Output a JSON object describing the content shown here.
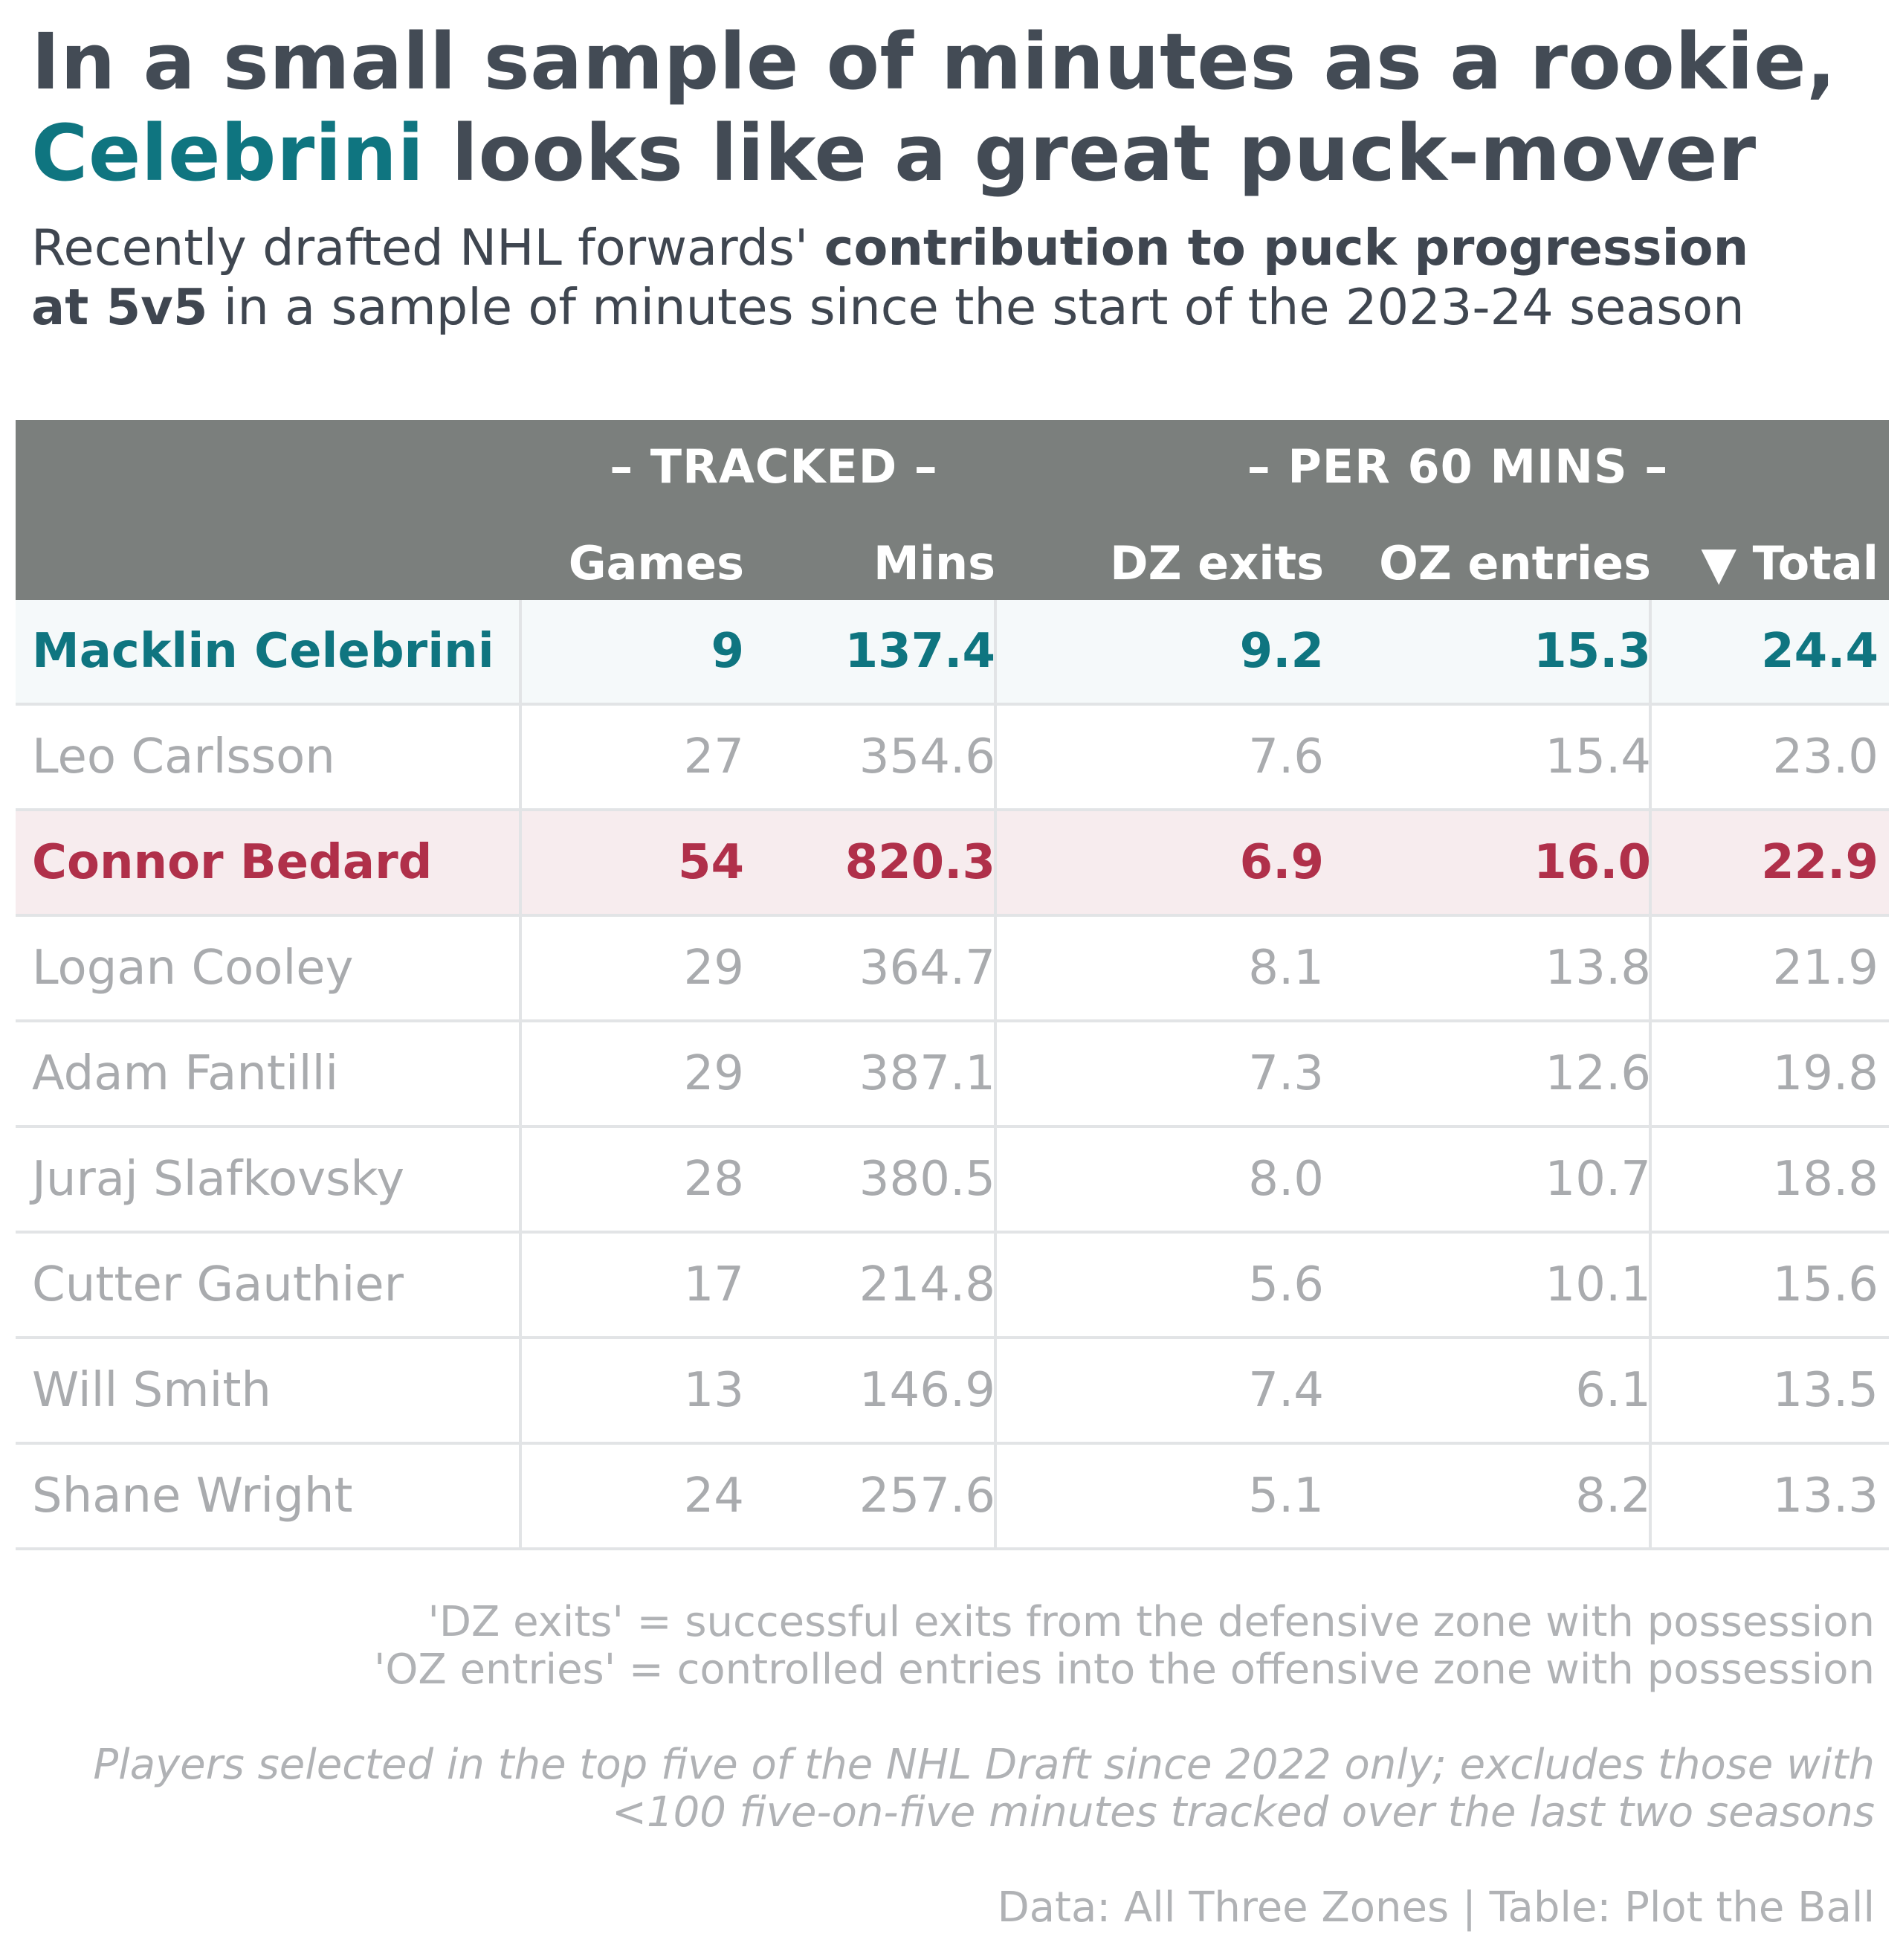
{
  "title": {
    "line1": "In a small sample of minutes as a rookie,",
    "line2_accent": "Celebrini",
    "line2_rest": " looks like a great puck-mover"
  },
  "subtitle": {
    "part1": "Recently drafted NHL forwards' ",
    "bold1": "contribution to puck progression",
    "bold2": "at 5v5",
    "part2": " in a sample of minutes since the start of the 2023-24 season"
  },
  "colors": {
    "header_bg": "#7b7f7d",
    "celebrini": "#0f7580",
    "bedard": "#b0304a",
    "muted_text": "#a9abae",
    "title_text": "#434b55"
  },
  "chart_data": {
    "type": "table",
    "groups": [
      "– TRACKED –",
      "– PER 60 MINS –"
    ],
    "columns": {
      "games": "Games",
      "mins": "Mins",
      "dz": "DZ exits",
      "oz": "OZ entries",
      "total": "▼ Total"
    },
    "rows": [
      {
        "player": "Macklin Celebrini",
        "games": "9",
        "mins": "137.4",
        "dz": "9.2",
        "oz": "15.3",
        "total": "24.4"
      },
      {
        "player": "Leo Carlsson",
        "games": "27",
        "mins": "354.6",
        "dz": "7.6",
        "oz": "15.4",
        "total": "23.0"
      },
      {
        "player": "Connor Bedard",
        "games": "54",
        "mins": "820.3",
        "dz": "6.9",
        "oz": "16.0",
        "total": "22.9"
      },
      {
        "player": "Logan Cooley",
        "games": "29",
        "mins": "364.7",
        "dz": "8.1",
        "oz": "13.8",
        "total": "21.9"
      },
      {
        "player": "Adam Fantilli",
        "games": "29",
        "mins": "387.1",
        "dz": "7.3",
        "oz": "12.6",
        "total": "19.8"
      },
      {
        "player": "Juraj Slafkovsky",
        "games": "28",
        "mins": "380.5",
        "dz": "8.0",
        "oz": "10.7",
        "total": "18.8"
      },
      {
        "player": "Cutter Gauthier",
        "games": "17",
        "mins": "214.8",
        "dz": "5.6",
        "oz": "10.1",
        "total": "15.6"
      },
      {
        "player": "Will Smith",
        "games": "13",
        "mins": "146.9",
        "dz": "7.4",
        "oz": "6.1",
        "total": "13.5"
      },
      {
        "player": "Shane Wright",
        "games": "24",
        "mins": "257.6",
        "dz": "5.1",
        "oz": "8.2",
        "total": "13.3"
      }
    ]
  },
  "notes": {
    "def1": "'DZ exits' = successful exits from the defensive zone with possession",
    "def2": "'OZ entries' = controlled entries into the offensive zone with possession",
    "caveat1": "Players selected in the top five of the NHL Draft since 2022 only; excludes those with",
    "caveat2": "<100 five-on-five minutes tracked over the last two seasons",
    "source": "Data: All Three Zones | Table: Plot the Ball"
  }
}
